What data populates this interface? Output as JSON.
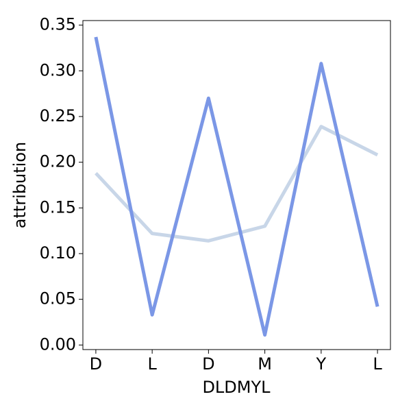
{
  "chart_data": {
    "type": "line",
    "xlabel": "DLDMYL",
    "ylabel": "attribution",
    "categories": [
      "D",
      "L",
      "D",
      "M",
      "Y",
      "L"
    ],
    "series": [
      {
        "color": "#7b97e6",
        "values": [
          0.337,
          0.033,
          0.27,
          0.011,
          0.308,
          0.042
        ]
      },
      {
        "color": "#c8d6e8",
        "values": [
          0.188,
          0.122,
          0.114,
          0.13,
          0.239,
          0.208
        ]
      }
    ],
    "ylim": [
      -0.005,
      0.355
    ],
    "yticks": [
      {
        "value": 0,
        "label": "0.00"
      },
      0.05,
      {
        "value": 0.1,
        "label": "0.10"
      },
      0.15,
      {
        "value": 0.2,
        "label": "0.20"
      },
      0.25,
      {
        "value": 0.3,
        "label": "0.30"
      },
      0.35
    ]
  }
}
